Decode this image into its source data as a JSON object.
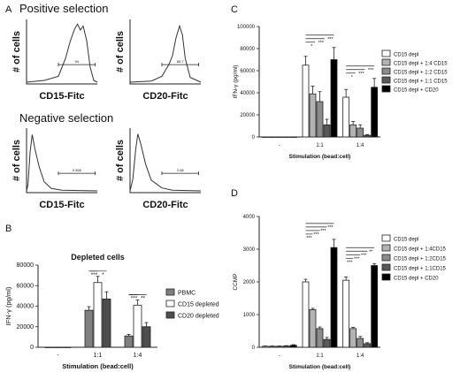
{
  "panels": {
    "A": {
      "letter": "A",
      "positive_title": "Positive selection",
      "negative_title": "Negative selection",
      "ylabel": "# of cells",
      "histograms": [
        {
          "xlabel": "CD15-Fitc",
          "gate": "94"
        },
        {
          "xlabel": "CD20-Fitc",
          "gate": "85.7"
        },
        {
          "xlabel": "CD15-Fitc",
          "gate": "0.356"
        },
        {
          "xlabel": "CD20-Fitc",
          "gate": "2.66"
        }
      ]
    },
    "B": {
      "letter": "B"
    },
    "C": {
      "letter": "C"
    },
    "D": {
      "letter": "D"
    }
  },
  "chart_data": [
    {
      "panel": "B",
      "type": "bar",
      "title": "Depleted cells",
      "xlabel": "Stimulation (bead:cell)",
      "ylabel": "IFN-γ (pg/ml)",
      "ylim": [
        0,
        80000
      ],
      "yticks": [
        "0",
        "20000",
        "40000",
        "60000",
        "80000"
      ],
      "categories": [
        "-",
        "1:1",
        "1:4"
      ],
      "legend_position": "right",
      "series": [
        {
          "name": "PBMC",
          "color": "#7f7f7f",
          "values": [
            0,
            36000,
            11000
          ],
          "errors": [
            0,
            3500,
            1500
          ]
        },
        {
          "name": "CD15 depleted",
          "color": "#ffffff",
          "values": [
            0,
            63000,
            41000
          ],
          "errors": [
            0,
            6000,
            5000
          ]
        },
        {
          "name": "CD20 depleted",
          "color": "#4d4d4d",
          "values": [
            0,
            47000,
            20000
          ],
          "errors": [
            0,
            7000,
            4000
          ]
        }
      ],
      "significance": [
        {
          "category": "1:1",
          "labels": [
            "***",
            "*"
          ]
        },
        {
          "category": "1:4",
          "labels": [
            "***",
            "**"
          ]
        }
      ]
    },
    {
      "panel": "C",
      "type": "bar",
      "title": "",
      "xlabel": "Stimulation (bead:cell)",
      "ylabel": "IFN-γ (pg/ml)",
      "ylim": [
        0,
        100000
      ],
      "yticks": [
        "0",
        "20000",
        "40000",
        "60000",
        "80000",
        "100000"
      ],
      "categories": [
        "-",
        "1:1",
        "1:4"
      ],
      "legend_position": "right",
      "series": [
        {
          "name": "CD15 depl",
          "color": "#ffffff",
          "values": [
            0,
            65000,
            36000
          ],
          "errors": [
            0,
            8000,
            7000
          ]
        },
        {
          "name": "CD15 depl + 1:4 CD15",
          "color": "#b3b3b3",
          "values": [
            0,
            39000,
            11000
          ],
          "errors": [
            0,
            7000,
            3000
          ]
        },
        {
          "name": "CD15 depl + 1:2 CD15",
          "color": "#8c8c8c",
          "values": [
            0,
            32000,
            8000
          ],
          "errors": [
            0,
            9000,
            3000
          ]
        },
        {
          "name": "CD15 depl + 1:1 CD15",
          "color": "#595959",
          "values": [
            0,
            11000,
            1500
          ],
          "errors": [
            0,
            5000,
            700
          ]
        },
        {
          "name": "CD15 depl + CD20",
          "color": "#000000",
          "values": [
            0,
            70000,
            45000
          ],
          "errors": [
            0,
            11000,
            8000
          ]
        }
      ],
      "significance": [
        {
          "category": "1:1",
          "labels": [
            "*",
            "***",
            "***"
          ]
        },
        {
          "category": "1:4",
          "labels": [
            "*",
            "***",
            "***"
          ]
        }
      ]
    },
    {
      "panel": "D",
      "type": "bar",
      "title": "",
      "xlabel": "Stimulation (bead:cell)",
      "ylabel": "CCMP",
      "ylim": [
        0,
        4000
      ],
      "yticks": [
        "0",
        "1000",
        "2000",
        "3000",
        "4000"
      ],
      "categories": [
        "-",
        "1:1",
        "1:4"
      ],
      "legend_position": "right",
      "series": [
        {
          "name": "CD15 depl",
          "color": "#ffffff",
          "values": [
            30,
            2000,
            2050
          ],
          "errors": [
            10,
            80,
            100
          ]
        },
        {
          "name": "CD15 depl + 1:4CD15",
          "color": "#b3b3b3",
          "values": [
            30,
            1150,
            570
          ],
          "errors": [
            10,
            40,
            40
          ]
        },
        {
          "name": "CD15 depl + 1:2CD15",
          "color": "#8c8c8c",
          "values": [
            30,
            570,
            270
          ],
          "errors": [
            10,
            50,
            60
          ]
        },
        {
          "name": "CD15 depl + 1:1CD15",
          "color": "#595959",
          "values": [
            40,
            240,
            110
          ],
          "errors": [
            10,
            60,
            30
          ]
        },
        {
          "name": "CD15 depl + CD20",
          "color": "#000000",
          "values": [
            60,
            3050,
            2500
          ],
          "errors": [
            20,
            250,
            60
          ]
        }
      ],
      "significance": [
        {
          "category": "1:1",
          "labels": [
            "***",
            "***",
            "***",
            "***"
          ]
        },
        {
          "category": "1:4",
          "labels": [
            "***",
            "***",
            "***",
            "**"
          ]
        }
      ]
    }
  ]
}
